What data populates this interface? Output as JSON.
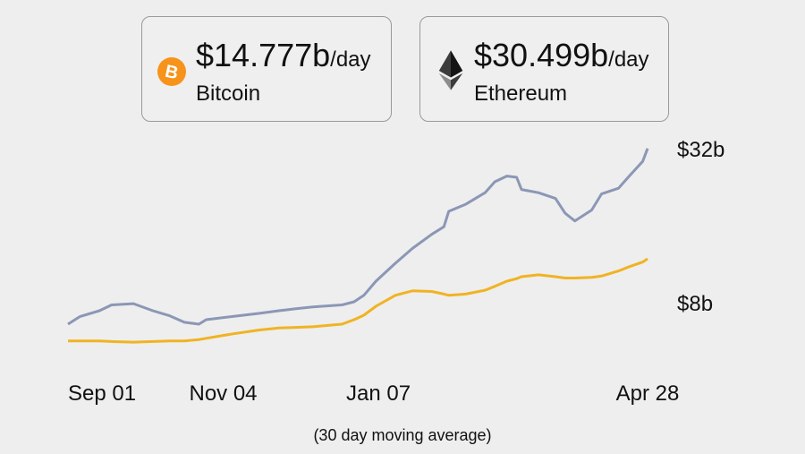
{
  "cards": [
    {
      "value": "$14.777b",
      "unit": "/day",
      "name": "Bitcoin",
      "icon": "bitcoin-icon",
      "color": "#f7931a"
    },
    {
      "value": "$30.499b",
      "unit": "/day",
      "name": "Ethereum",
      "icon": "ethereum-icon",
      "color": "#3c3c3d"
    }
  ],
  "chart_data": {
    "type": "line",
    "x_ticks": [
      {
        "date": "Sep 01",
        "label": "Sep 01"
      },
      {
        "date": "Nov 04",
        "label": "Nov 04"
      },
      {
        "date": "Jan 07",
        "label": "Jan 07"
      },
      {
        "date": "Apr 28",
        "label": "Apr 28"
      }
    ],
    "y_ticks": [
      {
        "value": 32,
        "label": "$32b"
      },
      {
        "value": 8,
        "label": "$8b"
      }
    ],
    "ylim": [
      -0.4,
      34.5
    ],
    "y_unit": "billion USD per day",
    "grid": false,
    "note": "(30 day moving average)",
    "x": [
      "Sep 01",
      "Sep 06",
      "Sep 14",
      "Sep 19",
      "Sep 28",
      "Oct 06",
      "Oct 13",
      "Oct 19",
      "Oct 25",
      "Oct 28",
      "Nov 08",
      "Nov 19",
      "Nov 27",
      "Dec 04",
      "Dec 11",
      "Dec 23",
      "Dec 28",
      "Jan 01",
      "Jan 06",
      "Jan 14",
      "Jan 21",
      "Jan 29",
      "Feb 03",
      "Feb 05",
      "Feb 12",
      "Feb 20",
      "Feb 24",
      "Mar 01",
      "Mar 05",
      "Mar 07",
      "Mar 14",
      "Mar 21",
      "Mar 25",
      "Mar 29",
      "Apr 05",
      "Apr 09",
      "Apr 16",
      "Apr 20",
      "Apr 26",
      "Apr 28"
    ],
    "series": [
      {
        "name": "Ethereum",
        "color": "#8b97b5",
        "values": [
          4.9,
          6.1,
          7.0,
          7.9,
          8.1,
          7.0,
          6.2,
          5.2,
          4.9,
          5.6,
          6.1,
          6.6,
          7.0,
          7.3,
          7.6,
          7.9,
          8.4,
          9.4,
          11.6,
          14.4,
          16.7,
          18.9,
          20.1,
          22.5,
          23.6,
          25.4,
          27.1,
          28.0,
          27.8,
          25.9,
          25.4,
          24.5,
          22.2,
          21.0,
          22.7,
          25.2,
          26.1,
          27.8,
          30.3,
          32.3
        ]
      },
      {
        "name": "Bitcoin",
        "color": "#f0b323",
        "values": [
          2.3,
          2.3,
          2.3,
          2.2,
          2.1,
          2.2,
          2.3,
          2.3,
          2.5,
          2.7,
          3.4,
          4.0,
          4.3,
          4.4,
          4.5,
          4.9,
          5.6,
          6.3,
          7.7,
          9.4,
          10.1,
          10.0,
          9.6,
          9.4,
          9.6,
          10.2,
          10.8,
          11.6,
          12.0,
          12.3,
          12.6,
          12.3,
          12.1,
          12.1,
          12.2,
          12.4,
          13.2,
          13.8,
          14.6,
          15.1
        ]
      }
    ]
  }
}
